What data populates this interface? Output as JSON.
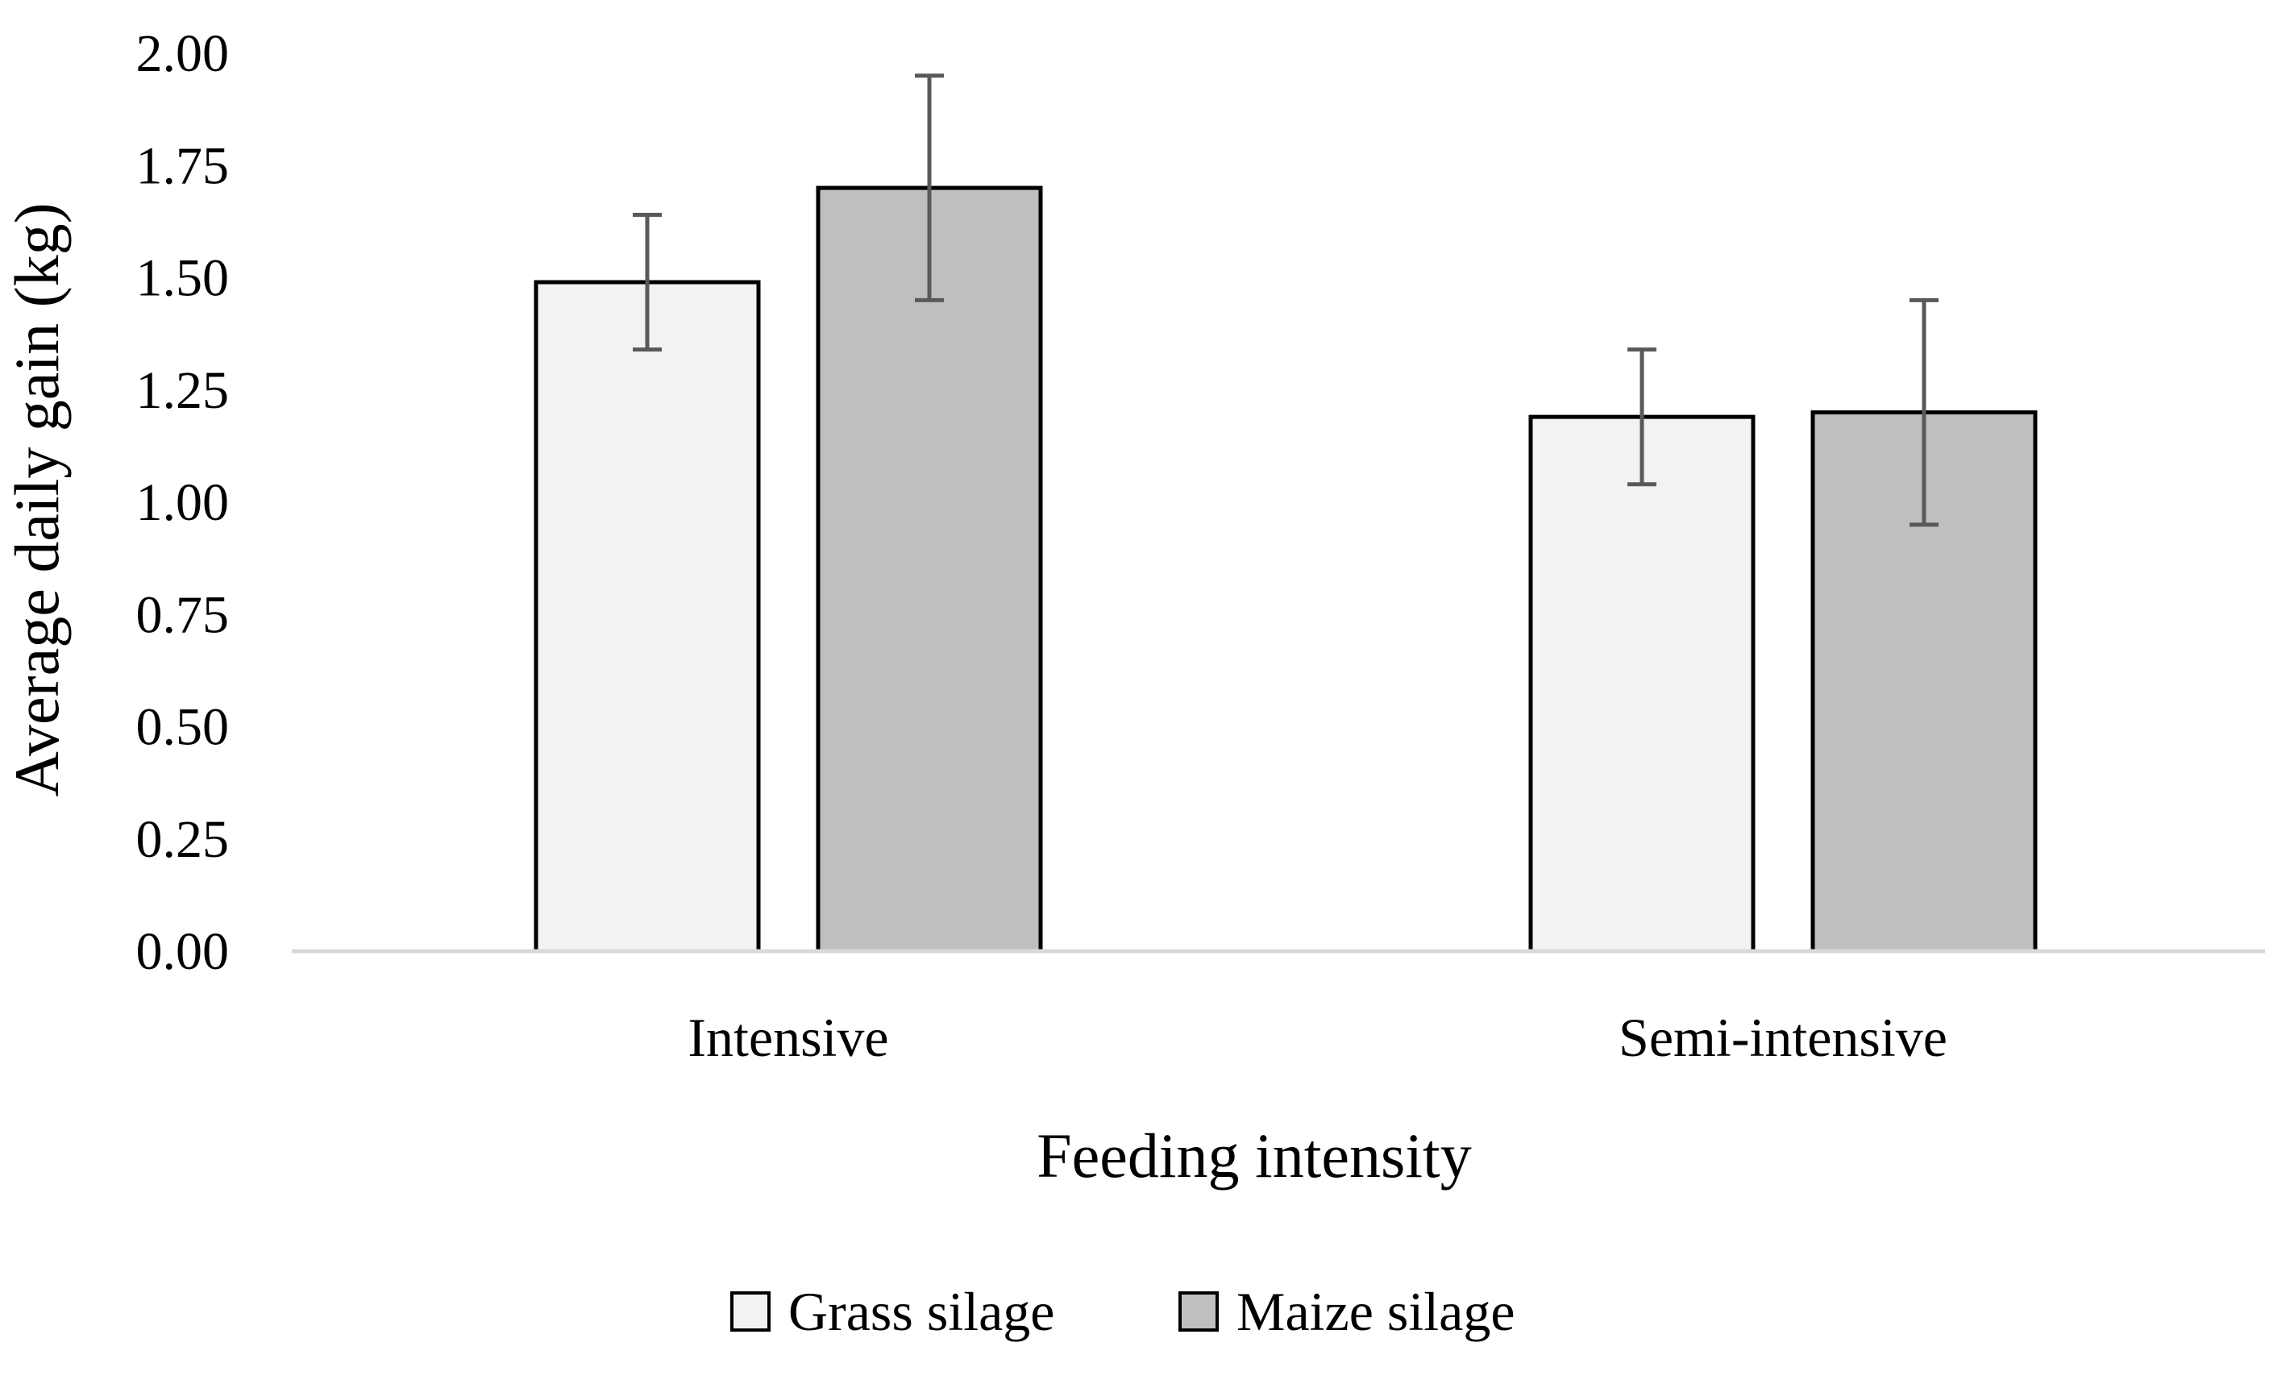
{
  "chart_data": {
    "type": "bar",
    "title": "",
    "xlabel": "Feeding intensity",
    "ylabel": "Average daily gain (kg)",
    "categories": [
      "Intensive",
      "Semi-intensive"
    ],
    "series": [
      {
        "name": "Grass silage",
        "color": "#f2f2f2",
        "values": [
          1.49,
          1.19
        ],
        "errors": [
          0.15,
          0.15
        ]
      },
      {
        "name": "Maize silage",
        "color": "#bfbfbf",
        "values": [
          1.7,
          1.2
        ],
        "errors": [
          0.25,
          0.25
        ]
      }
    ],
    "ylim": [
      0,
      2.0
    ],
    "yticks": [
      "0.00",
      "0.25",
      "0.50",
      "0.75",
      "1.00",
      "1.25",
      "1.50",
      "1.75",
      "2.00"
    ],
    "grid": false,
    "legend_position": "bottom",
    "axis_color": "#d9d9d9",
    "bar_outline_color": "#000000",
    "error_bar_color": "#595959"
  }
}
